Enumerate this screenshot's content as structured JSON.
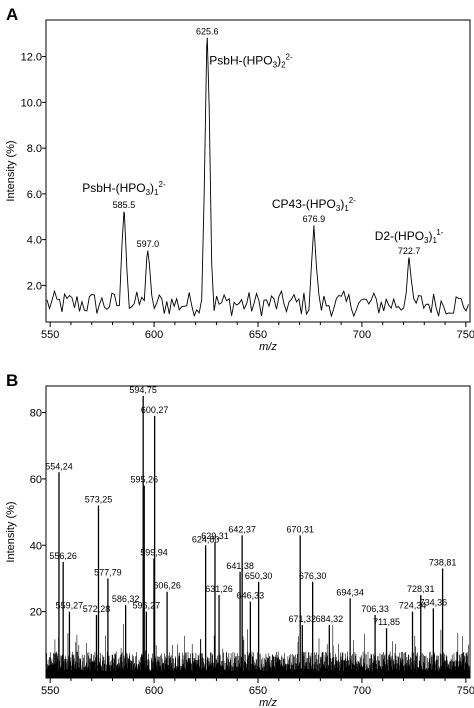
{
  "chart_data": [
    {
      "panel": "A",
      "type": "line",
      "xlabel": "m/z",
      "ylabel": "Intensity    (%)",
      "xlim": [
        548,
        752
      ],
      "ylim": [
        0.4,
        13.6
      ],
      "xticks": [
        "550",
        "600",
        "650",
        "700",
        "750"
      ],
      "xtick_values": [
        550,
        600,
        650,
        700,
        750
      ],
      "yticks": [
        "2.0",
        "4.0",
        "6.0",
        "8.0",
        "10.0",
        "12.0"
      ],
      "ytick_values": [
        2,
        4,
        6,
        8,
        10,
        12
      ],
      "peaks": [
        {
          "x": 585.5,
          "y": 5.2,
          "label": "585.5"
        },
        {
          "x": 597.0,
          "y": 3.5,
          "label": "597.0"
        },
        {
          "x": 625.6,
          "y": 12.8,
          "label": "625.6"
        },
        {
          "x": 676.9,
          "y": 4.6,
          "label": "676.9"
        },
        {
          "x": 722.7,
          "y": 3.2,
          "label": "722.7"
        }
      ],
      "annotations": [
        {
          "text": "PsbH-(HPO",
          "sub": "3",
          "sub2": "1",
          "sup": "2-"
        },
        {
          "text": "PsbH-(HPO",
          "sub": "3",
          "sub2": "2",
          "sup": "2-"
        },
        {
          "text": "CP43-(HPO",
          "sub": "3",
          "sub2": "1",
          "sup": "2-"
        },
        {
          "text": "D2-(HPO",
          "sub": "3",
          "sub2": "1",
          "sup": "1-"
        }
      ],
      "baseline_level": 1.2
    },
    {
      "panel": "B",
      "type": "line",
      "xlabel": "m/z",
      "ylabel": "Intensity    (%)",
      "xlim": [
        548,
        752
      ],
      "ylim": [
        0,
        88
      ],
      "xticks": [
        "550",
        "600",
        "650",
        "700",
        "750"
      ],
      "xtick_values": [
        550,
        600,
        650,
        700,
        750
      ],
      "yticks": [
        "20",
        "40",
        "60",
        "80"
      ],
      "ytick_values": [
        20,
        40,
        60,
        80
      ],
      "peaks": [
        {
          "x": 554.24,
          "y": 62,
          "label": "554,24"
        },
        {
          "x": 556.26,
          "y": 35,
          "label": "556,26"
        },
        {
          "x": 559.27,
          "y": 20,
          "label": "559,27"
        },
        {
          "x": 572.28,
          "y": 19,
          "label": "572,28"
        },
        {
          "x": 573.25,
          "y": 52,
          "label": "573,25"
        },
        {
          "x": 577.79,
          "y": 30,
          "label": "577,79"
        },
        {
          "x": 586.32,
          "y": 22,
          "label": "586,32"
        },
        {
          "x": 594.75,
          "y": 85,
          "label": "594,75"
        },
        {
          "x": 595.26,
          "y": 58,
          "label": "595,26"
        },
        {
          "x": 596.27,
          "y": 20,
          "label": "596,27"
        },
        {
          "x": 599.94,
          "y": 36,
          "label": "599,94"
        },
        {
          "x": 600.27,
          "y": 79,
          "label": "600,27"
        },
        {
          "x": 606.26,
          "y": 26,
          "label": "606,26"
        },
        {
          "x": 624.8,
          "y": 40,
          "label": "624,80"
        },
        {
          "x": 629.31,
          "y": 41,
          "label": "629,31"
        },
        {
          "x": 631.26,
          "y": 25,
          "label": "631,26"
        },
        {
          "x": 641.38,
          "y": 32,
          "label": "641,38"
        },
        {
          "x": 642.37,
          "y": 43,
          "label": "642,37"
        },
        {
          "x": 646.33,
          "y": 23,
          "label": "646,33"
        },
        {
          "x": 650.3,
          "y": 29,
          "label": "650,30"
        },
        {
          "x": 670.31,
          "y": 43,
          "label": "670,31"
        },
        {
          "x": 671.32,
          "y": 16,
          "label": "671,32"
        },
        {
          "x": 676.3,
          "y": 29,
          "label": "676,30"
        },
        {
          "x": 684.32,
          "y": 16,
          "label": "684,32"
        },
        {
          "x": 694.34,
          "y": 24,
          "label": "694,34"
        },
        {
          "x": 706.33,
          "y": 19,
          "label": "706,33"
        },
        {
          "x": 711.85,
          "y": 15,
          "label": "711,85"
        },
        {
          "x": 724.34,
          "y": 20,
          "label": "724,34"
        },
        {
          "x": 728.31,
          "y": 25,
          "label": "728,31"
        },
        {
          "x": 734.36,
          "y": 21,
          "label": "734,36"
        },
        {
          "x": 738.81,
          "y": 33,
          "label": "738,81"
        }
      ]
    }
  ]
}
